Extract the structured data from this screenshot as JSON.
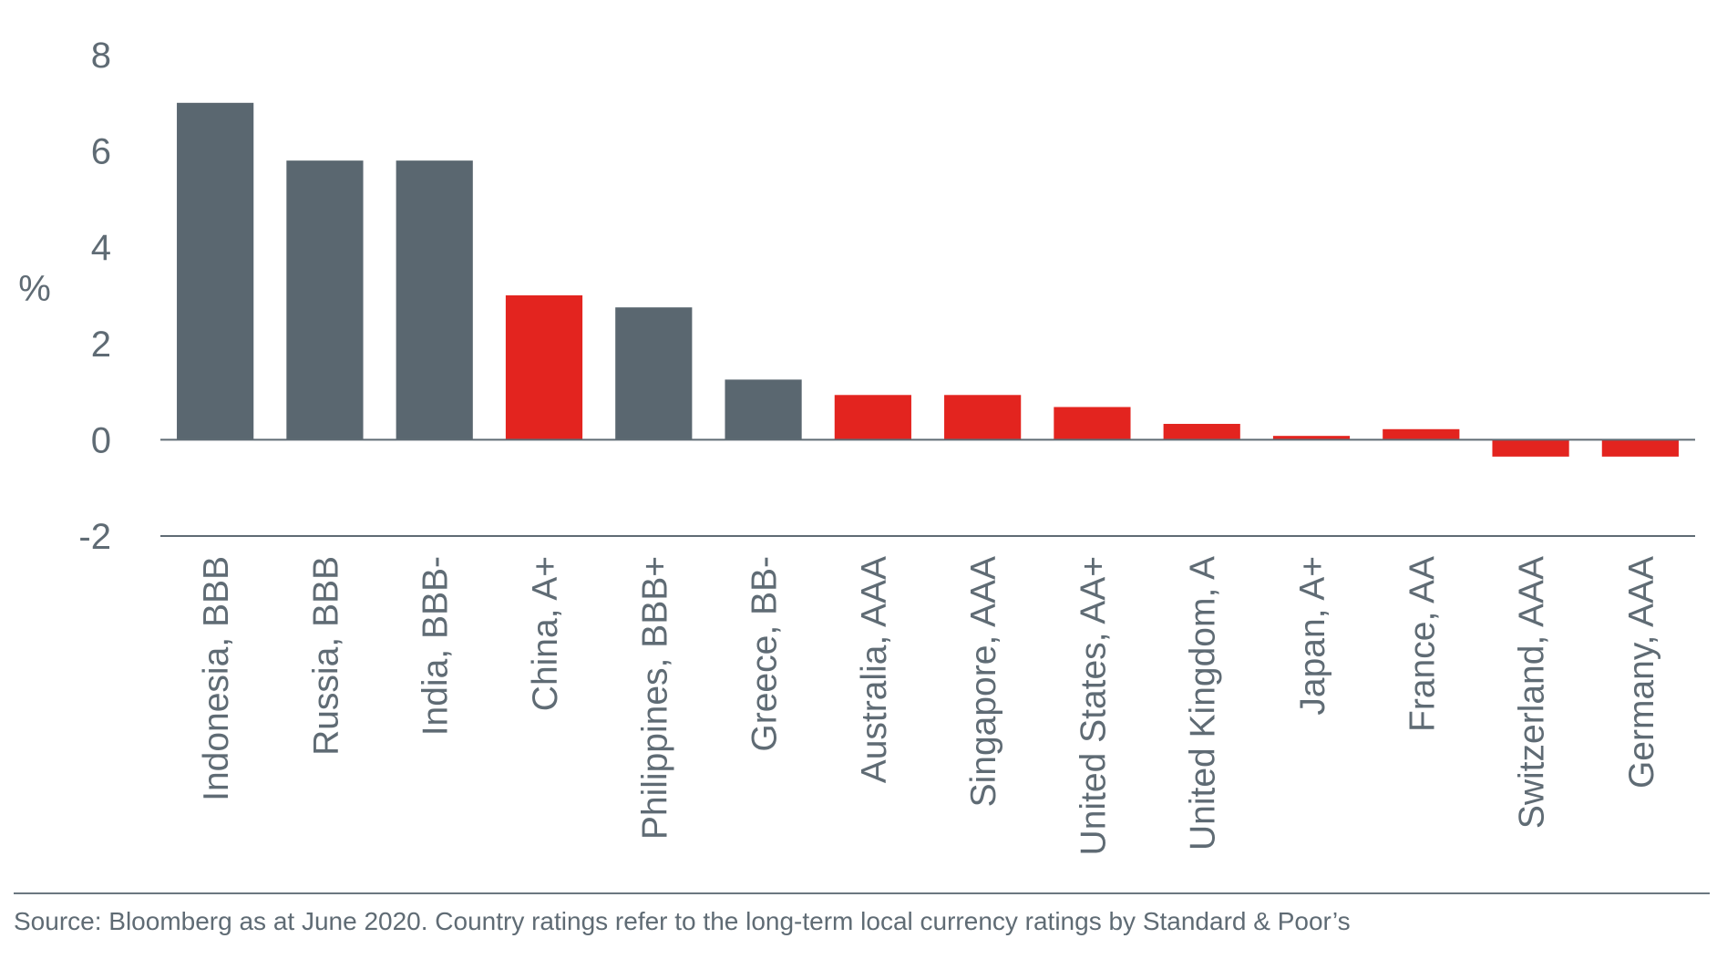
{
  "chart_data": {
    "type": "bar",
    "ylabel": "%",
    "ylim": [
      -2,
      8
    ],
    "yticks": [
      "-2",
      "0",
      "2",
      "4",
      "6",
      "8"
    ],
    "categories": [
      "Indonesia, BBB",
      "Russia, BBB",
      "India, BBB-",
      "China, A+",
      "Philippines, BBB+",
      "Greece, BB-",
      "Australia, AAA",
      "Singapore, AAA",
      "United States, AA+",
      "United Kingdom, A",
      "Japan, A+",
      "France, AA",
      "Switzerland, AAA",
      "Germany, AAA"
    ],
    "values": [
      7.0,
      5.8,
      5.8,
      3.0,
      2.75,
      1.25,
      0.93,
      0.93,
      0.68,
      0.33,
      0.08,
      0.22,
      -0.35,
      -0.35
    ],
    "highlighted": [
      false,
      false,
      false,
      true,
      false,
      false,
      true,
      true,
      true,
      true,
      true,
      true,
      true,
      true
    ],
    "colors": {
      "default": "#5a6770",
      "highlight": "#e3241f",
      "axis": "#5f6b74"
    },
    "grid": false,
    "legend": "none"
  },
  "source": "Source: Bloomberg as at June 2020. Country ratings refer to the long-term local currency ratings by Standard & Poor’s"
}
